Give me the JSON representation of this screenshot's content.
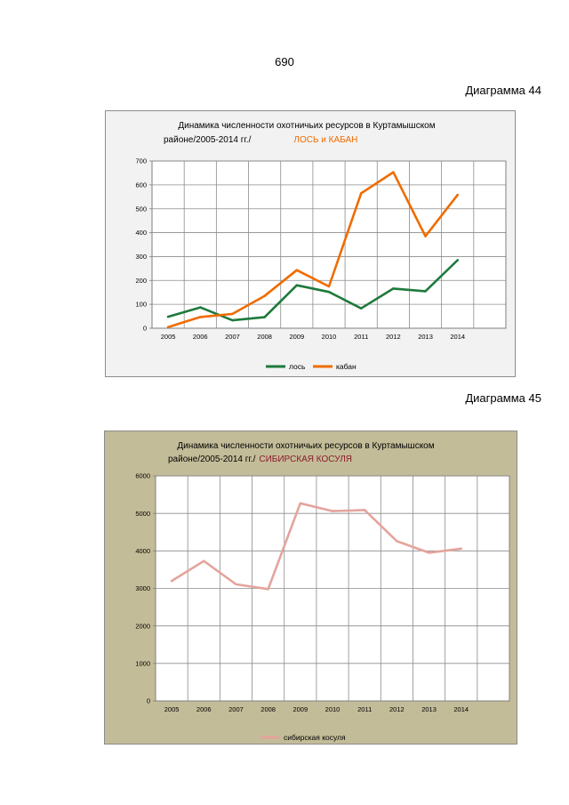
{
  "page": {
    "number": "690",
    "captions": [
      "Диаграмма 44",
      "Диаграмма 45"
    ]
  },
  "colors": {
    "moose": "#1e7a3c",
    "boar": "#ef6c00",
    "roe": "#e4a49c",
    "chart2_title_accent": "#8b1a2b"
  },
  "chart_data": [
    {
      "type": "line",
      "title_line1": "Динамика численности охотничьих ресурсов в Куртамышском",
      "title_line2": "районе/2005-2014 гг./",
      "title_highlight": "ЛОСЬ и КАБАН",
      "x": [
        "2005",
        "2006",
        "2007",
        "2008",
        "2009",
        "2010",
        "2011",
        "2012",
        "2013",
        "2014"
      ],
      "ylim": [
        0,
        700
      ],
      "yticks": [
        "0",
        "100",
        "200",
        "300",
        "400",
        "500",
        "600",
        "700"
      ],
      "grid": true,
      "legend": "bottom",
      "series": [
        {
          "name": "лось",
          "values": [
            48,
            87,
            33,
            46,
            180,
            152,
            83,
            166,
            155,
            285
          ]
        },
        {
          "name": "кабан",
          "values": [
            5,
            47,
            60,
            135,
            243,
            175,
            565,
            653,
            385,
            558
          ]
        }
      ]
    },
    {
      "type": "line",
      "title_line1": "Динамика численности  охотничьих ресурсов  в  Куртамышском",
      "title_line2": "районе/2005-2014  гг./",
      "title_highlight": "СИБИРСКАЯ  КОСУЛЯ",
      "x": [
        "2005",
        "2006",
        "2007",
        "2008",
        "2009",
        "2010",
        "2011",
        "2012",
        "2013",
        "2014"
      ],
      "ylim": [
        0,
        6000
      ],
      "yticks": [
        "0",
        "1000",
        "2000",
        "3000",
        "4000",
        "5000",
        "6000"
      ],
      "grid": true,
      "legend": "bottom",
      "series": [
        {
          "name": "сибирская косуля",
          "values": [
            3200,
            3730,
            3110,
            2980,
            5270,
            5060,
            5090,
            4260,
            3950,
            4060
          ]
        }
      ]
    }
  ]
}
